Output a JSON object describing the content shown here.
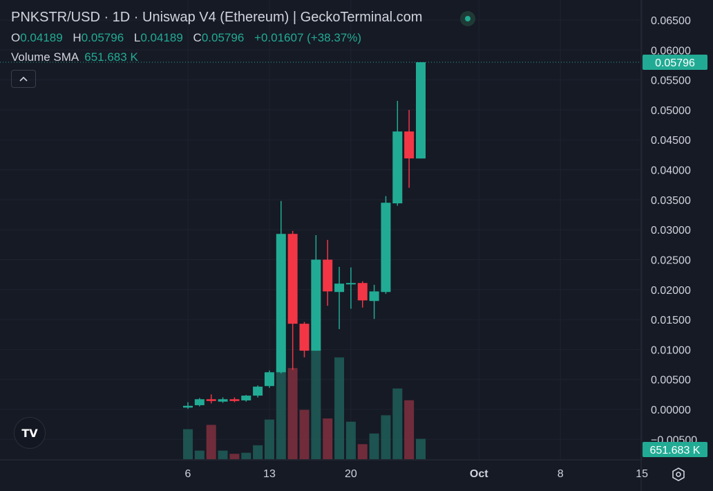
{
  "header": {
    "title": "PNKSTR/USD · 1D · Uniswap V4 (Ethereum) | GeckoTerminal.com"
  },
  "ohlc": {
    "o_label": "O",
    "o_value": "0.04189",
    "h_label": "H",
    "h_value": "0.05796",
    "l_label": "L",
    "l_value": "0.04189",
    "c_label": "C",
    "c_value": "0.05796",
    "change": "+0.01607 (+38.37%)"
  },
  "volume": {
    "label": "Volume SMA",
    "value": "651.683 K"
  },
  "badges": {
    "last_price": "0.05796",
    "volume": "651.683 K"
  },
  "colors": {
    "up": "#22ab94",
    "down": "#f23645",
    "up_volume": "#1e5a55",
    "down_volume": "#7a2f3d",
    "background": "#161a25",
    "grid": "#1f2330",
    "text": "#d1d4dc"
  },
  "chart_data": {
    "type": "candlestick",
    "price_axis": {
      "ticks": [
        "0.06500",
        "0.06000",
        "0.05500",
        "0.05000",
        "0.04500",
        "0.04000",
        "0.03500",
        "0.03000",
        "0.02500",
        "0.02000",
        "0.01500",
        "0.01000",
        "0.00500",
        "0.00000",
        "−0.00500"
      ],
      "tick_values": [
        0.065,
        0.06,
        0.055,
        0.05,
        0.045,
        0.04,
        0.035,
        0.03,
        0.025,
        0.02,
        0.015,
        0.01,
        0.005,
        0.0,
        -0.005
      ]
    },
    "time_axis": {
      "labels": [
        "6",
        "13",
        "20",
        "Oct",
        "8",
        "15"
      ],
      "label_day_index": [
        0,
        7,
        14,
        25,
        32,
        39
      ]
    },
    "last_price": 0.05796,
    "candles": [
      {
        "day": 0,
        "o": 0.0003,
        "h": 0.0012,
        "l": 0.0001,
        "c": 0.0006
      },
      {
        "day": 1,
        "o": 0.0007,
        "h": 0.0019,
        "l": 0.0005,
        "c": 0.0017
      },
      {
        "day": 2,
        "o": 0.0017,
        "h": 0.0025,
        "l": 0.001,
        "c": 0.0014
      },
      {
        "day": 3,
        "o": 0.0013,
        "h": 0.002,
        "l": 0.0011,
        "c": 0.0017
      },
      {
        "day": 4,
        "o": 0.0017,
        "h": 0.002,
        "l": 0.0012,
        "c": 0.0014
      },
      {
        "day": 5,
        "o": 0.0015,
        "h": 0.0024,
        "l": 0.0013,
        "c": 0.0023
      },
      {
        "day": 6,
        "o": 0.0023,
        "h": 0.004,
        "l": 0.002,
        "c": 0.0038
      },
      {
        "day": 7,
        "o": 0.0039,
        "h": 0.0065,
        "l": 0.0036,
        "c": 0.0062
      },
      {
        "day": 8,
        "o": 0.0062,
        "h": 0.0348,
        "l": 0.006,
        "c": 0.0293
      },
      {
        "day": 9,
        "o": 0.0293,
        "h": 0.0298,
        "l": 0.0066,
        "c": 0.0143
      },
      {
        "day": 10,
        "o": 0.0143,
        "h": 0.0146,
        "l": 0.0087,
        "c": 0.0098
      },
      {
        "day": 11,
        "o": 0.0098,
        "h": 0.0291,
        "l": 0.0098,
        "c": 0.025
      },
      {
        "day": 12,
        "o": 0.025,
        "h": 0.0283,
        "l": 0.0173,
        "c": 0.0197
      },
      {
        "day": 13,
        "o": 0.0196,
        "h": 0.0238,
        "l": 0.0134,
        "c": 0.021
      },
      {
        "day": 14,
        "o": 0.021,
        "h": 0.0237,
        "l": 0.0168,
        "c": 0.0211
      },
      {
        "day": 15,
        "o": 0.0211,
        "h": 0.0214,
        "l": 0.017,
        "c": 0.0182
      },
      {
        "day": 16,
        "o": 0.0181,
        "h": 0.0208,
        "l": 0.0151,
        "c": 0.0197
      },
      {
        "day": 17,
        "o": 0.0196,
        "h": 0.0356,
        "l": 0.0193,
        "c": 0.0345
      },
      {
        "day": 18,
        "o": 0.0344,
        "h": 0.0515,
        "l": 0.034,
        "c": 0.0464
      },
      {
        "day": 19,
        "o": 0.0464,
        "h": 0.05,
        "l": 0.037,
        "c": 0.0419
      },
      {
        "day": 20,
        "o": 0.04189,
        "h": 0.05796,
        "l": 0.04189,
        "c": 0.05796
      }
    ],
    "volume_relative": [
      0.28,
      0.08,
      0.32,
      0.08,
      0.05,
      0.06,
      0.13,
      0.37,
      1.0,
      0.85,
      0.46,
      1.02,
      0.38,
      0.95,
      0.35,
      0.14,
      0.24,
      0.41,
      0.66,
      0.55,
      0.19
    ]
  }
}
